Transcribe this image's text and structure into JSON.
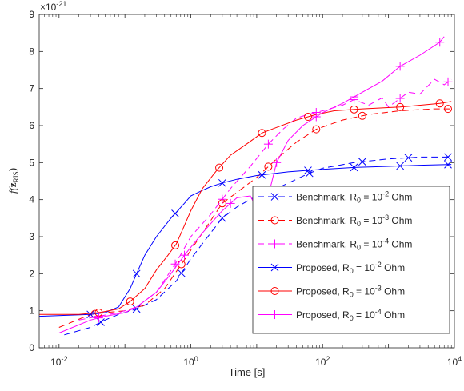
{
  "chart_data": {
    "type": "line",
    "xlabel": "Time [s]",
    "ylabel_main": "f(",
    "ylabel_bold": "z",
    "ylabel_sub": "RIS",
    "ylabel_close": ")",
    "xscale": "log",
    "xlim": [
      0.005,
      10000
    ],
    "ylim": [
      0,
      9
    ],
    "y_multiplier": {
      "base": "×10",
      "exp": "-21"
    },
    "x_ticks": [
      {
        "v": 0.01,
        "base": "10",
        "exp": "-2"
      },
      {
        "v": 1,
        "base": "10",
        "exp": "0"
      },
      {
        "v": 100,
        "base": "10",
        "exp": "2"
      },
      {
        "v": 10000,
        "base": "10",
        "exp": "4"
      }
    ],
    "y_ticks": [
      0,
      1,
      2,
      3,
      4,
      5,
      6,
      7,
      8,
      9
    ],
    "grid": false,
    "legend_position": "lower-right",
    "series": [
      {
        "name_pre": "Benchmark, R",
        "name_sub": "0",
        "name_mid": " = 10",
        "name_sup": "-2",
        "name_post": " Ohm",
        "color": "#0000ff",
        "dash": "8,5",
        "marker": "x",
        "x": [
          0.012,
          0.03,
          0.05,
          0.08,
          0.15,
          0.3,
          0.6,
          1,
          2,
          3,
          5,
          10,
          20,
          40,
          60,
          100,
          300,
          1000,
          3000,
          8000
        ],
        "y": [
          0.35,
          0.55,
          0.75,
          0.9,
          1.05,
          1.3,
          1.8,
          2.4,
          3.1,
          3.5,
          3.8,
          4.1,
          4.3,
          4.55,
          4.7,
          4.85,
          5.0,
          5.1,
          5.15,
          5.15
        ],
        "marker_x": [
          0.043,
          0.15,
          0.72,
          3,
          15,
          63,
          400,
          2000,
          8000
        ]
      },
      {
        "name_pre": "Benchmark, R",
        "name_sub": "0",
        "name_mid": " = 10",
        "name_sup": "-3",
        "name_post": " Ohm",
        "color": "#ff0000",
        "dash": "8,5",
        "marker": "o",
        "x": [
          0.01,
          0.03,
          0.05,
          0.1,
          0.2,
          0.4,
          0.75,
          1.5,
          3,
          6,
          10,
          20,
          40,
          80,
          200,
          500,
          1500,
          5000,
          9000
        ],
        "y": [
          0.55,
          0.9,
          0.95,
          1.0,
          1.15,
          1.6,
          2.3,
          3.1,
          3.9,
          4.3,
          4.6,
          5.1,
          5.55,
          5.9,
          6.15,
          6.3,
          6.4,
          6.45,
          6.45
        ],
        "marker_x": [
          0.035,
          0.72,
          3,
          15,
          80,
          400,
          8000
        ]
      },
      {
        "name_pre": "Benchmark, R",
        "name_sub": "0",
        "name_mid": " = 10",
        "name_sup": "-4",
        "name_post": " Ohm",
        "color": "#ff00ff",
        "dash": "8,5",
        "marker": "+",
        "x": [
          0.02,
          0.04,
          0.08,
          0.15,
          0.3,
          0.6,
          1,
          2,
          4,
          8,
          15,
          25,
          40,
          60,
          100,
          200,
          300,
          500,
          800,
          1000,
          2000,
          3000,
          5000,
          7000,
          9000
        ],
        "y": [
          0.75,
          0.85,
          0.95,
          1.1,
          1.5,
          2.3,
          3.0,
          3.6,
          4.3,
          4.9,
          5.5,
          5.9,
          6.2,
          6.3,
          6.4,
          6.55,
          6.7,
          6.55,
          6.75,
          6.5,
          6.9,
          6.85,
          7.25,
          7.1,
          7.25
        ],
        "marker_x": [
          0.04,
          0.58,
          3,
          15,
          80,
          300,
          1500,
          8000
        ]
      },
      {
        "name_pre": "Proposed, R",
        "name_sub": "0",
        "name_mid": " = 10",
        "name_sup": "-2",
        "name_post": " Ohm",
        "color": "#0000ff",
        "dash": "",
        "marker": "x",
        "x": [
          0.005,
          0.03,
          0.05,
          0.08,
          0.12,
          0.15,
          0.2,
          0.3,
          0.5,
          0.8,
          1,
          1.5,
          2,
          3,
          5,
          10,
          30,
          100,
          300,
          1000,
          3000,
          9000
        ],
        "y": [
          0.85,
          0.9,
          0.95,
          1.1,
          1.6,
          2.0,
          2.5,
          3.0,
          3.5,
          3.9,
          4.1,
          4.25,
          4.35,
          4.45,
          4.55,
          4.65,
          4.75,
          4.82,
          4.87,
          4.9,
          4.93,
          4.95
        ],
        "marker_x": [
          0.03,
          0.15,
          0.58,
          3,
          12,
          60,
          300,
          1500,
          8000
        ]
      },
      {
        "name_pre": "Proposed, R",
        "name_sub": "0",
        "name_mid": " = 10",
        "name_sup": "-3",
        "name_post": " Ohm",
        "color": "#ff0000",
        "dash": "",
        "marker": "o",
        "x": [
          0.005,
          0.02,
          0.04,
          0.08,
          0.12,
          0.2,
          0.3,
          0.45,
          0.6,
          0.8,
          1,
          1.5,
          2.5,
          4,
          7,
          12,
          20,
          40,
          80,
          150,
          400,
          1500,
          6000,
          9000
        ],
        "y": [
          0.9,
          0.9,
          0.95,
          1.05,
          1.25,
          1.6,
          2.1,
          2.5,
          2.8,
          3.3,
          3.7,
          4.3,
          4.8,
          5.2,
          5.5,
          5.8,
          5.95,
          6.15,
          6.3,
          6.4,
          6.45,
          6.5,
          6.6,
          6.65
        ],
        "marker_x": [
          0.04,
          0.12,
          0.58,
          2.7,
          12,
          60,
          300,
          1500,
          6000
        ]
      },
      {
        "name_pre": "Proposed, R",
        "name_sub": "0",
        "name_mid": " = 10",
        "name_sup": "-4",
        "name_post": " Ohm",
        "color": "#ff00ff",
        "dash": "",
        "marker": "+",
        "x": [
          0.01,
          0.03,
          0.05,
          0.1,
          0.15,
          0.3,
          0.5,
          0.8,
          1.5,
          3,
          5,
          8,
          12,
          15,
          20,
          30,
          50,
          100,
          200,
          400,
          800,
          1500,
          3000,
          6000,
          7000
        ],
        "y": [
          0.4,
          0.75,
          0.85,
          0.95,
          1.1,
          1.5,
          2.0,
          2.5,
          3.1,
          3.7,
          4.05,
          4.1,
          3.5,
          4.1,
          5.0,
          5.6,
          6.0,
          6.35,
          6.6,
          6.9,
          7.2,
          7.6,
          7.9,
          8.25,
          8.4
        ],
        "marker_x": [
          0.04,
          0.8,
          4,
          20,
          80,
          300,
          1500,
          6000
        ]
      }
    ]
  }
}
